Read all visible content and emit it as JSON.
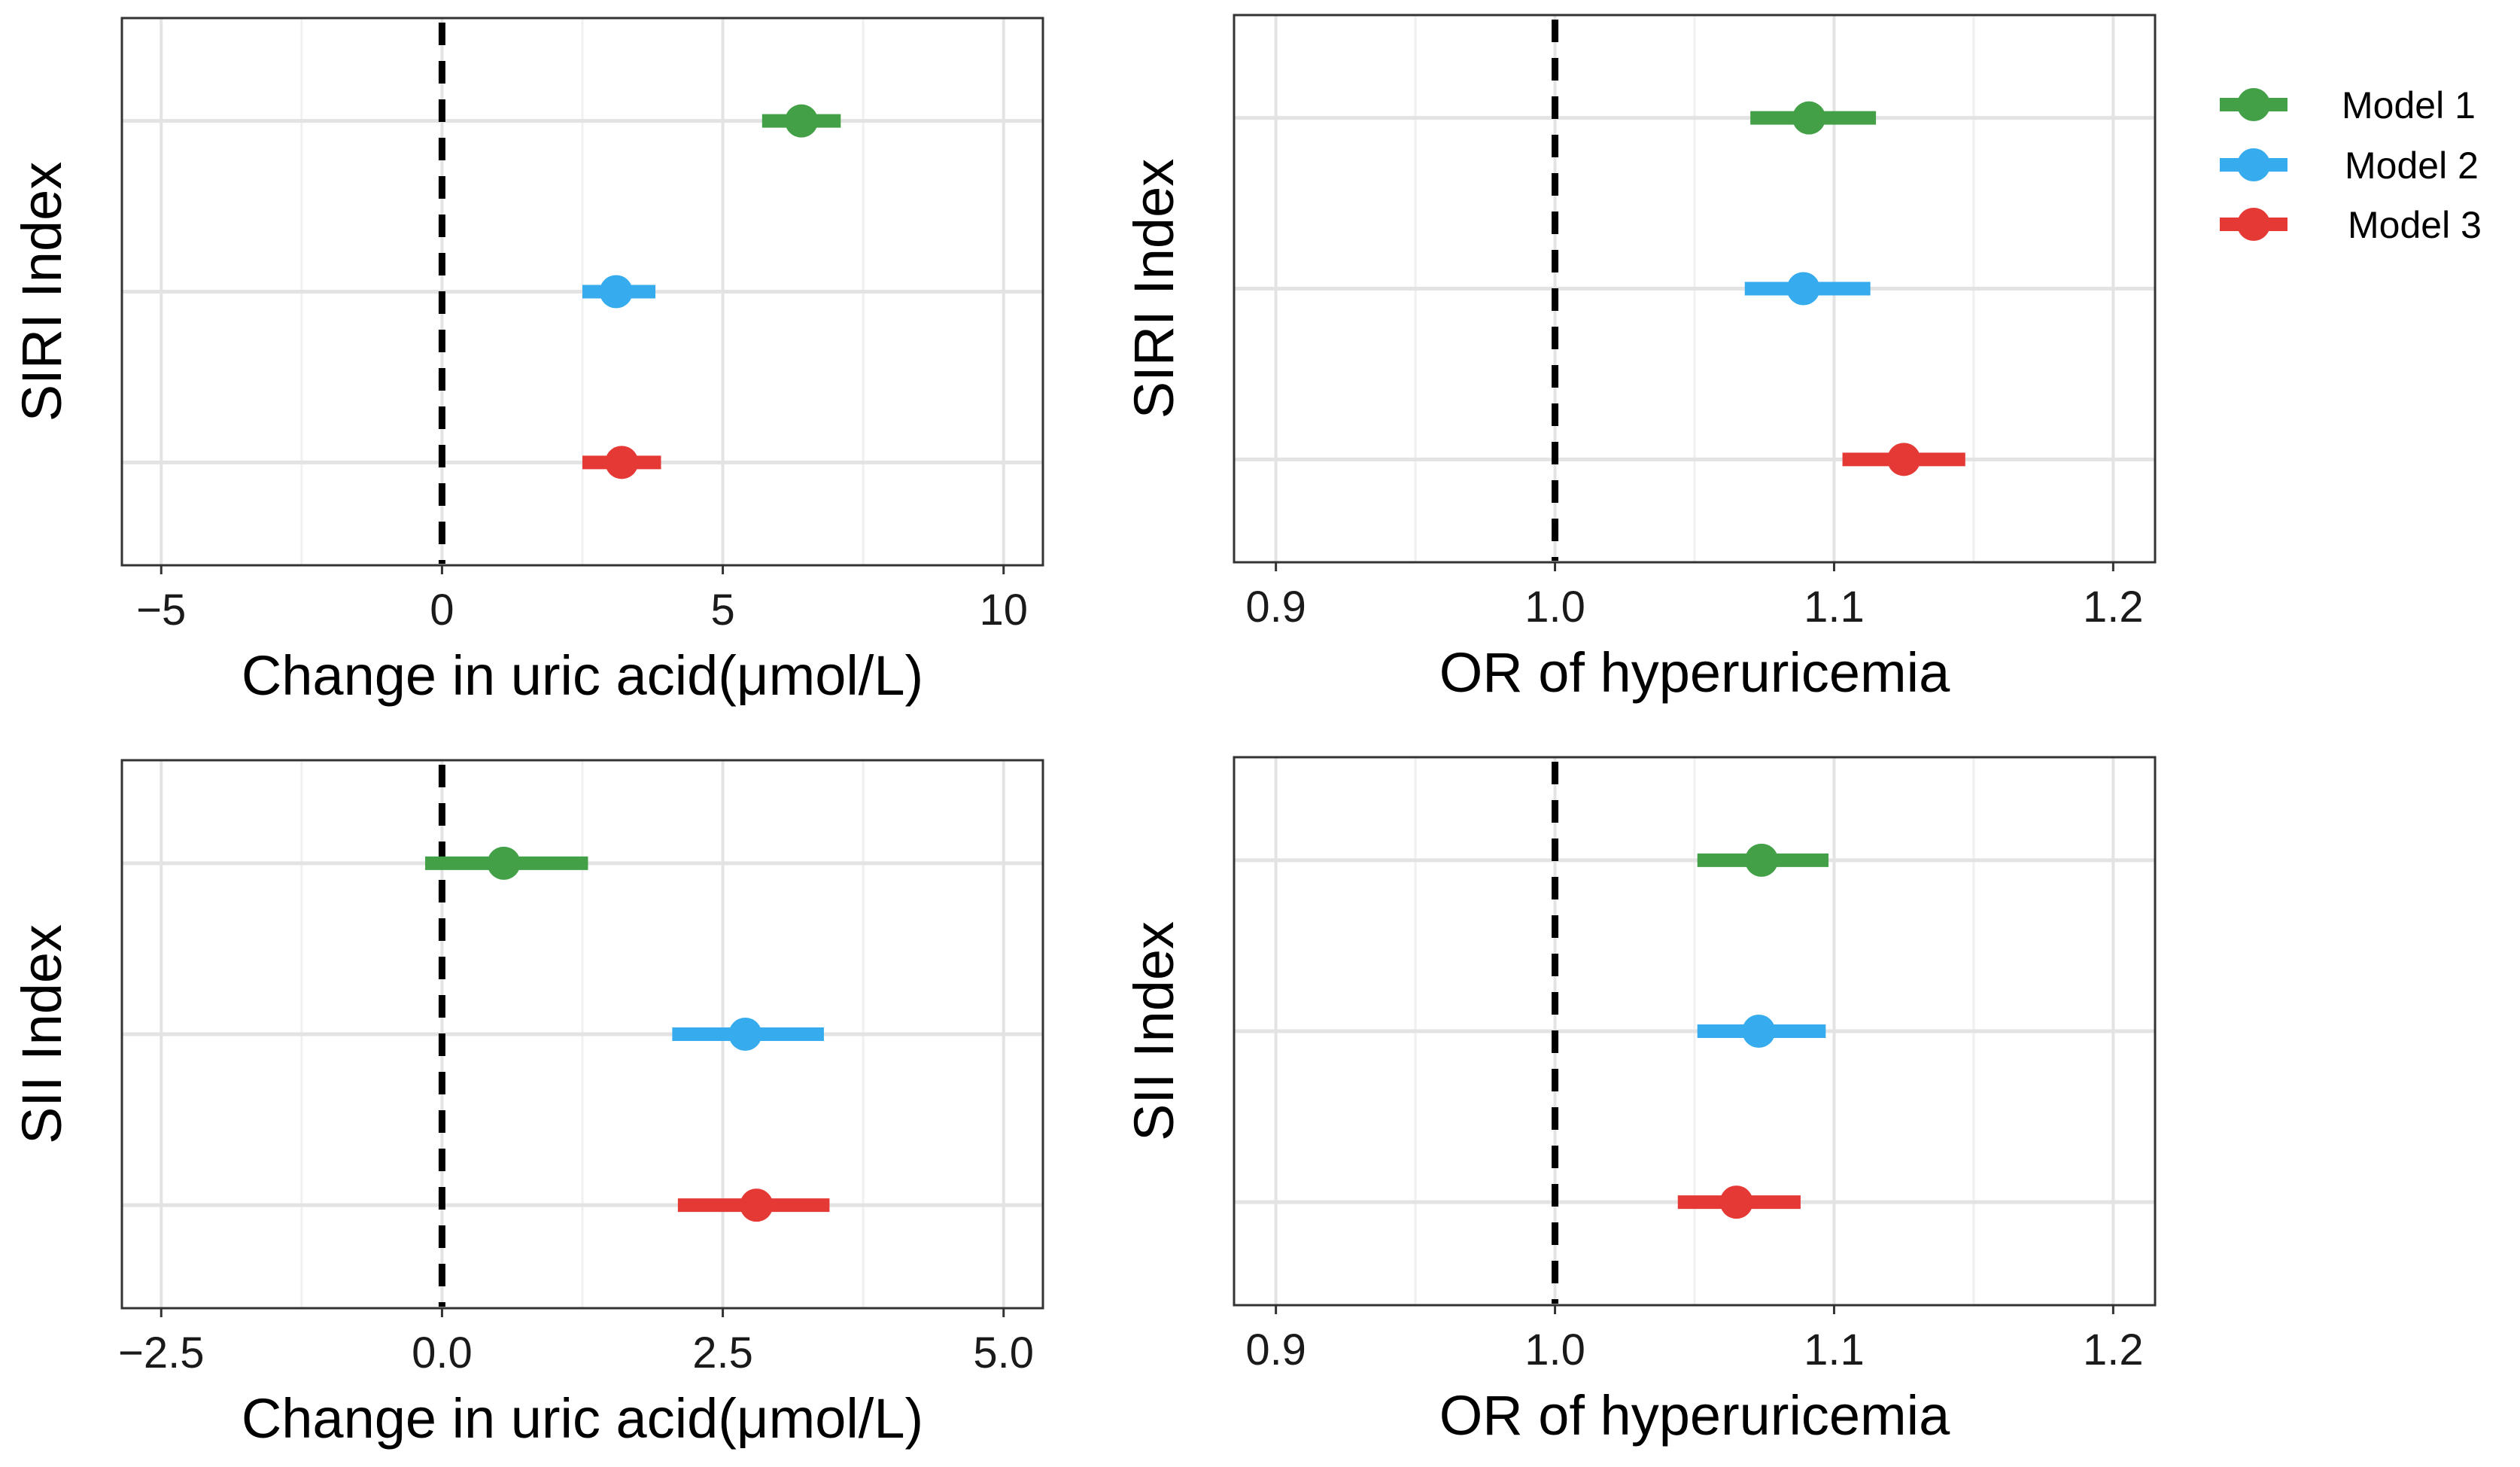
{
  "legend": {
    "items": [
      {
        "label": "Model 1",
        "color": "#43A047"
      },
      {
        "label": "Model 2",
        "color": "#36ABEE"
      },
      {
        "label": "Model 3",
        "color": "#E53935"
      }
    ]
  },
  "chart_data": [
    {
      "type": "forest",
      "xlabel": "Change in uric acid(μmol/L)",
      "ylabel": "SIRI Index",
      "xlim": [
        -5.7,
        10.7
      ],
      "xticks": [
        -5,
        0,
        5,
        10
      ],
      "xtick_labels": [
        "−5",
        "0",
        "5",
        "10"
      ],
      "reference_line": 0,
      "series": [
        {
          "name": "Model 1",
          "estimate": 6.4,
          "ci_low": 5.7,
          "ci_high": 7.1
        },
        {
          "name": "Model 2",
          "estimate": 3.1,
          "ci_low": 2.5,
          "ci_high": 3.8
        },
        {
          "name": "Model 3",
          "estimate": 3.2,
          "ci_low": 2.5,
          "ci_high": 3.9
        }
      ]
    },
    {
      "type": "forest",
      "xlabel": "OR of hyperuricemia",
      "ylabel": "SIRI Index",
      "xlim": [
        0.885,
        1.215
      ],
      "xticks": [
        0.9,
        1.0,
        1.1,
        1.2
      ],
      "xtick_labels": [
        "0.9",
        "1.0",
        "1.1",
        "1.2"
      ],
      "reference_line": 1.0,
      "series": [
        {
          "name": "Model 1",
          "estimate": 1.091,
          "ci_low": 1.07,
          "ci_high": 1.115
        },
        {
          "name": "Model 2",
          "estimate": 1.089,
          "ci_low": 1.068,
          "ci_high": 1.113
        },
        {
          "name": "Model 3",
          "estimate": 1.125,
          "ci_low": 1.103,
          "ci_high": 1.147
        }
      ]
    },
    {
      "type": "forest",
      "xlabel": "Change in uric acid(μmol/L)",
      "ylabel": "SII Index",
      "xlim": [
        -2.85,
        5.35
      ],
      "xticks": [
        -2.5,
        0.0,
        2.5,
        5.0
      ],
      "xtick_labels": [
        "−2.5",
        "0.0",
        "2.5",
        "5.0"
      ],
      "reference_line": 0,
      "series": [
        {
          "name": "Model 1",
          "estimate": 0.55,
          "ci_low": -0.15,
          "ci_high": 1.3
        },
        {
          "name": "Model 2",
          "estimate": 2.7,
          "ci_low": 2.05,
          "ci_high": 3.4
        },
        {
          "name": "Model 3",
          "estimate": 2.8,
          "ci_low": 2.1,
          "ci_high": 3.45
        }
      ]
    },
    {
      "type": "forest",
      "xlabel": "OR of hyperuricemia",
      "ylabel": "SII Index",
      "xlim": [
        0.885,
        1.215
      ],
      "xticks": [
        0.9,
        1.0,
        1.1,
        1.2
      ],
      "xtick_labels": [
        "0.9",
        "1.0",
        "1.1",
        "1.2"
      ],
      "reference_line": 1.0,
      "series": [
        {
          "name": "Model 1",
          "estimate": 1.074,
          "ci_low": 1.051,
          "ci_high": 1.098
        },
        {
          "name": "Model 2",
          "estimate": 1.073,
          "ci_low": 1.051,
          "ci_high": 1.097
        },
        {
          "name": "Model 3",
          "estimate": 1.065,
          "ci_low": 1.044,
          "ci_high": 1.088
        }
      ]
    }
  ]
}
